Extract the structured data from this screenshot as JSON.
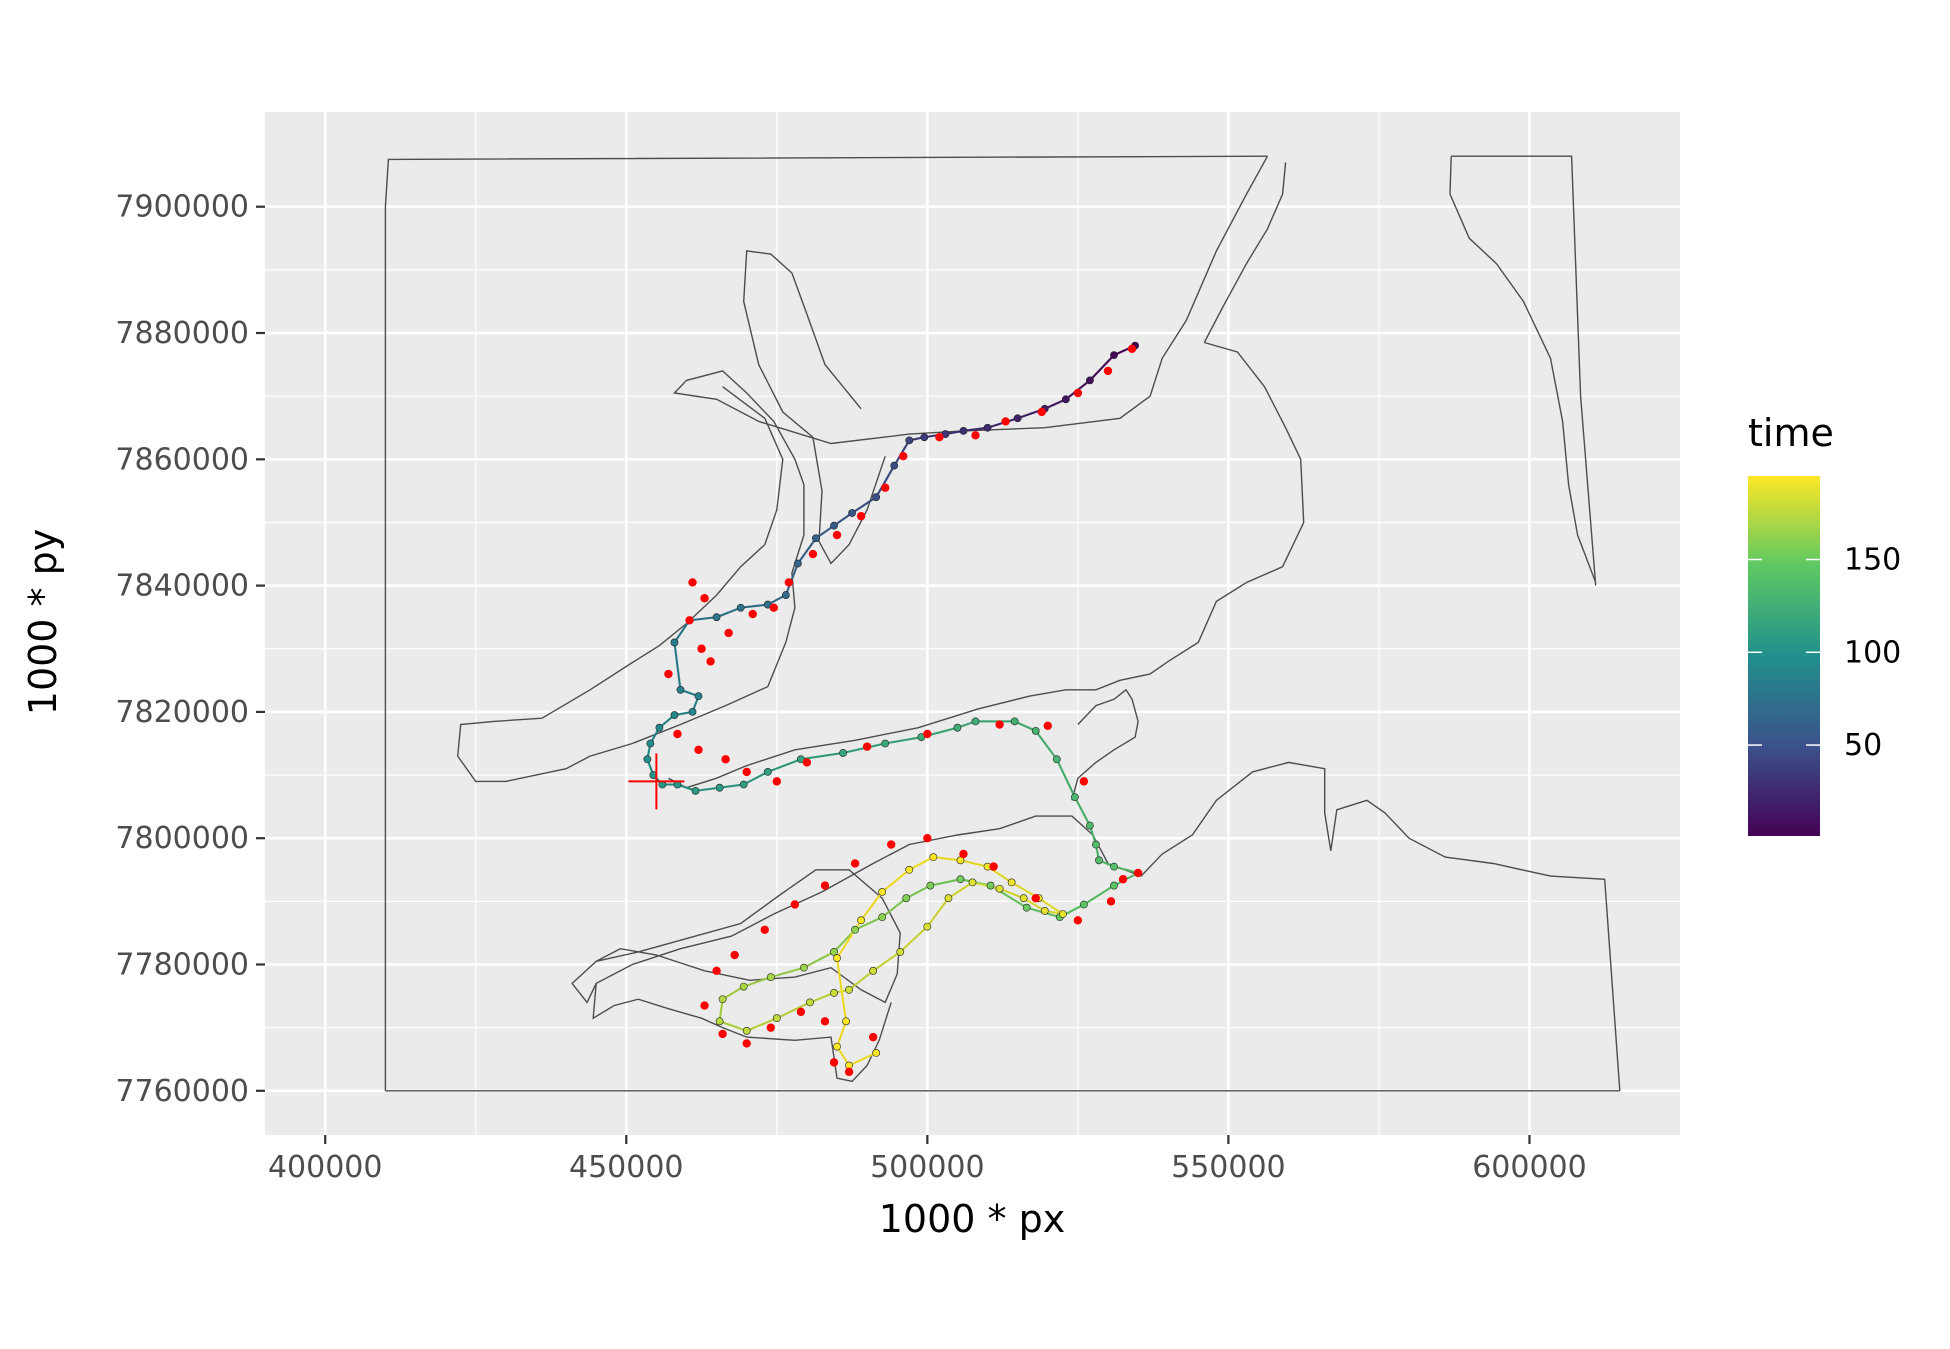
{
  "chart_data": {
    "type": "scatter",
    "title": "",
    "xlabel": "1000 * px",
    "ylabel": "1000 * py",
    "xlim": [
      390000,
      625000
    ],
    "ylim": [
      7753000,
      7915000
    ],
    "x_ticks": [
      400000,
      450000,
      500000,
      550000,
      600000
    ],
    "y_ticks": [
      7760000,
      7780000,
      7800000,
      7820000,
      7840000,
      7860000,
      7880000,
      7900000
    ],
    "x_tick_labels": [
      "400000",
      "450000",
      "500000",
      "550000",
      "600000"
    ],
    "y_tick_labels": [
      "7760000",
      "7780000",
      "7800000",
      "7820000",
      "7840000",
      "7860000",
      "7880000",
      "7900000"
    ],
    "grid": true,
    "panel_background": "#ebebeb",
    "coastline_color": "#4d4d4d",
    "outlier_color": "#ff0000",
    "start_marker": {
      "x": 455000,
      "y": 7809000,
      "color": "#ff0000"
    },
    "legend": {
      "title": "time",
      "placement": "right",
      "min": 1,
      "max": 195,
      "ticks": [
        50,
        100,
        150
      ],
      "tick_labels": [
        "50",
        "100",
        "150"
      ],
      "colormap": [
        "#440154",
        "#3b528b",
        "#21908c",
        "#5dc863",
        "#fde725"
      ]
    },
    "coastline": [
      [
        [
          410000,
          7760000
        ],
        [
          410000,
          7900000
        ],
        [
          410500,
          7907500
        ],
        [
          556500,
          7908000
        ]
      ],
      [
        [
          587000,
          7908000
        ],
        [
          607000,
          7908000
        ],
        [
          608500,
          7870000
        ],
        [
          611000,
          7840000
        ]
      ],
      [
        [
          587000,
          7908000
        ],
        [
          586800,
          7902000
        ],
        [
          590000,
          7895000
        ],
        [
          594500,
          7891000
        ],
        [
          599000,
          7885000
        ],
        [
          603500,
          7876000
        ],
        [
          605500,
          7866000
        ],
        [
          606500,
          7856000
        ],
        [
          608000,
          7848000
        ],
        [
          611000,
          7840500
        ]
      ],
      [
        [
          615000,
          7760000
        ],
        [
          612500,
          7793500
        ],
        [
          603500,
          7794000
        ],
        [
          594000,
          7796000
        ],
        [
          586000,
          7797000
        ],
        [
          580000,
          7800000
        ],
        [
          576000,
          7804000
        ],
        [
          573000,
          7806000
        ],
        [
          568000,
          7804500
        ],
        [
          567000,
          7798000
        ],
        [
          566000,
          7804000
        ],
        [
          566000,
          7811000
        ],
        [
          560000,
          7812000
        ],
        [
          554000,
          7810500
        ],
        [
          548000,
          7806000
        ],
        [
          544000,
          7800500
        ],
        [
          539000,
          7797500
        ],
        [
          535500,
          7794000
        ]
      ],
      [
        [
          410000,
          7760000
        ],
        [
          615000,
          7760000
        ]
      ],
      [
        [
          556500,
          7908000
        ],
        [
          553000,
          7902000
        ],
        [
          548000,
          7893000
        ],
        [
          543000,
          7882000
        ],
        [
          539000,
          7876000
        ],
        [
          537000,
          7870000
        ],
        [
          532000,
          7866500
        ],
        [
          519500,
          7865000
        ],
        [
          506000,
          7864500
        ],
        [
          497000,
          7864000
        ],
        [
          484000,
          7862500
        ],
        [
          472000,
          7866000
        ],
        [
          465000,
          7869500
        ],
        [
          458000,
          7870500
        ],
        [
          460000,
          7872500
        ],
        [
          466000,
          7874000
        ],
        [
          470000,
          7870500
        ],
        [
          474500,
          7866000
        ],
        [
          478000,
          7860000
        ],
        [
          479500,
          7856000
        ],
        [
          479500,
          7848000
        ],
        [
          477500,
          7842000
        ],
        [
          478000,
          7836500
        ],
        [
          476500,
          7831000
        ],
        [
          473500,
          7824000
        ],
        [
          466500,
          7821000
        ],
        [
          459000,
          7818000
        ],
        [
          451000,
          7815000
        ],
        [
          444000,
          7813000
        ],
        [
          440000,
          7811000
        ],
        [
          430000,
          7809000
        ],
        [
          425000,
          7809000
        ],
        [
          422000,
          7813000
        ],
        [
          422500,
          7818000
        ],
        [
          428000,
          7818500
        ],
        [
          436000,
          7819000
        ],
        [
          444000,
          7823500
        ],
        [
          450500,
          7827500
        ],
        [
          455500,
          7830500
        ],
        [
          460000,
          7834000
        ],
        [
          465000,
          7838500
        ],
        [
          469000,
          7843000
        ],
        [
          473000,
          7846500
        ],
        [
          475000,
          7852000
        ],
        [
          476000,
          7860000
        ],
        [
          473000,
          7866500
        ],
        [
          466000,
          7871500
        ]
      ],
      [
        [
          489000,
          7868000
        ],
        [
          483000,
          7875000
        ],
        [
          480000,
          7883000
        ],
        [
          477500,
          7889500
        ],
        [
          474000,
          7892500
        ],
        [
          470000,
          7893000
        ],
        [
          469500,
          7885000
        ],
        [
          472000,
          7875000
        ],
        [
          476000,
          7867500
        ],
        [
          481000,
          7863500
        ],
        [
          482500,
          7855000
        ],
        [
          482000,
          7847000
        ],
        [
          484000,
          7843500
        ],
        [
          487000,
          7846500
        ],
        [
          490000,
          7852000
        ],
        [
          493000,
          7860500
        ]
      ],
      [
        [
          546000,
          7878500
        ],
        [
          549000,
          7884000
        ],
        [
          553000,
          7891000
        ],
        [
          556500,
          7896500
        ],
        [
          559000,
          7902000
        ],
        [
          559500,
          7907000
        ]
      ],
      [
        [
          546000,
          7878500
        ],
        [
          551500,
          7877000
        ],
        [
          556000,
          7871500
        ],
        [
          559500,
          7865000
        ],
        [
          562000,
          7860000
        ],
        [
          562500,
          7850000
        ],
        [
          559000,
          7843000
        ],
        [
          553000,
          7840500
        ],
        [
          548000,
          7837500
        ],
        [
          545000,
          7831000
        ],
        [
          540000,
          7828000
        ],
        [
          537000,
          7826000
        ],
        [
          532000,
          7825000
        ],
        [
          528000,
          7823500
        ],
        [
          526000,
          7823500
        ],
        [
          523000,
          7823500
        ],
        [
          517000,
          7822500
        ],
        [
          508500,
          7820500
        ],
        [
          498500,
          7817500
        ],
        [
          488000,
          7815500
        ],
        [
          478000,
          7814000
        ],
        [
          470000,
          7811500
        ],
        [
          465000,
          7809500
        ],
        [
          460000,
          7808000
        ],
        [
          457000,
          7809500
        ]
      ],
      [
        [
          525000,
          7818000
        ],
        [
          528000,
          7821000
        ],
        [
          531000,
          7822000
        ],
        [
          533000,
          7823500
        ],
        [
          534000,
          7822000
        ],
        [
          535000,
          7818500
        ],
        [
          534500,
          7816000
        ],
        [
          531000,
          7814000
        ],
        [
          528000,
          7812000
        ],
        [
          525000,
          7809500
        ],
        [
          524000,
          7806000
        ]
      ],
      [
        [
          535500,
          7794000
        ],
        [
          530000,
          7796000
        ],
        [
          527500,
          7800500
        ],
        [
          524000,
          7803500
        ],
        [
          518000,
          7803500
        ],
        [
          512000,
          7801500
        ],
        [
          505000,
          7800500
        ],
        [
          497000,
          7799000
        ],
        [
          491000,
          7796000
        ],
        [
          482500,
          7791500
        ],
        [
          474500,
          7788000
        ],
        [
          467500,
          7784500
        ],
        [
          459000,
          7782500
        ],
        [
          451000,
          7780000
        ],
        [
          445000,
          7777000
        ],
        [
          443500,
          7774000
        ],
        [
          441000,
          7777000
        ],
        [
          445000,
          7780500
        ],
        [
          449000,
          7782500
        ],
        [
          455000,
          7781500
        ],
        [
          463000,
          7779000
        ],
        [
          470500,
          7777500
        ],
        [
          478000,
          7778000
        ],
        [
          484000,
          7779500
        ],
        [
          489000,
          7776000
        ],
        [
          493000,
          7774000
        ],
        [
          495000,
          7778500
        ],
        [
          495500,
          7785000
        ],
        [
          492500,
          7790500
        ],
        [
          487000,
          7795000
        ],
        [
          481500,
          7795000
        ],
        [
          475500,
          7791000
        ],
        [
          469000,
          7786500
        ],
        [
          461500,
          7784500
        ],
        [
          452000,
          7782000
        ],
        [
          445000,
          7780500
        ]
      ],
      [
        [
          445000,
          7777000
        ],
        [
          444500,
          7771500
        ],
        [
          448000,
          7773500
        ],
        [
          452000,
          7774500
        ],
        [
          457000,
          7773000
        ],
        [
          462500,
          7771500
        ],
        [
          466000,
          7770000
        ],
        [
          470000,
          7768500
        ],
        [
          478000,
          7768000
        ],
        [
          484000,
          7768500
        ],
        [
          485000,
          7762000
        ],
        [
          487500,
          7761500
        ],
        [
          490000,
          7764000
        ],
        [
          492000,
          7768000
        ],
        [
          494000,
          7774000
        ]
      ]
    ],
    "series": [
      {
        "name": "track",
        "x": [
          534500,
          531000,
          527000,
          523000,
          519500,
          515000,
          510000,
          506000,
          503000,
          499500,
          497000,
          494500,
          491500,
          487500,
          484500,
          481500,
          478500,
          476500,
          473500,
          469000,
          465000,
          460500,
          458000,
          459000,
          462000,
          461000,
          458000,
          455500,
          454000,
          453500,
          454500,
          456000,
          458500,
          461500,
          465500,
          469500,
          473500,
          479000,
          486000,
          493000,
          499000,
          505000,
          508000,
          514500,
          518000,
          521500,
          524500,
          527000,
          528000,
          528500,
          531000,
          535000,
          531000,
          526000,
          522000,
          516500,
          510500,
          505500,
          500500,
          496500,
          492500,
          488000,
          484500,
          479500,
          474000,
          469500,
          466000,
          465500,
          470000,
          475000,
          480500,
          484500,
          487000,
          491000,
          495500,
          500000,
          503500,
          507500,
          512000,
          516000,
          519500,
          522500,
          518500,
          514000,
          510000,
          505500,
          501000,
          497000,
          492500,
          489000,
          485000,
          486500,
          485000,
          487000,
          491500
        ],
        "y": [
          7878000,
          7876500,
          7872500,
          7869500,
          7868000,
          7866500,
          7865000,
          7864500,
          7864000,
          7863500,
          7863000,
          7859000,
          7854000,
          7851500,
          7849500,
          7847500,
          7843500,
          7838500,
          7837000,
          7836500,
          7835000,
          7834500,
          7831000,
          7823500,
          7822500,
          7820000,
          7819500,
          7817500,
          7815000,
          7812500,
          7810000,
          7808500,
          7808500,
          7807500,
          7808000,
          7808500,
          7810500,
          7812500,
          7813500,
          7815000,
          7816000,
          7817500,
          7818500,
          7818500,
          7817000,
          7812500,
          7806500,
          7802000,
          7799000,
          7796500,
          7795500,
          7794500,
          7792500,
          7789500,
          7787500,
          7789000,
          7792500,
          7793500,
          7792500,
          7790500,
          7787500,
          7785500,
          7782000,
          7779500,
          7778000,
          7776500,
          7774500,
          7771000,
          7769500,
          7771500,
          7774000,
          7775500,
          7776000,
          7779000,
          7782000,
          7786000,
          7790500,
          7793000,
          7792000,
          7790500,
          7788500,
          7788000,
          7790500,
          7793000,
          7795500,
          7796500,
          7797000,
          7795000,
          7791500,
          7787000,
          7781000,
          7771000,
          7767000,
          7764000,
          7766000
        ],
        "time": [
          1,
          5,
          9,
          13,
          17,
          21,
          25,
          29,
          33,
          37,
          41,
          45,
          49,
          53,
          57,
          61,
          65,
          69,
          72,
          75,
          78,
          81,
          84,
          86,
          88,
          90,
          92,
          94,
          96,
          98,
          100,
          102,
          104,
          106,
          108,
          110,
          112,
          114,
          116,
          118,
          120,
          122,
          124,
          126,
          128,
          130,
          132,
          134,
          136,
          138,
          140,
          142,
          144,
          146,
          148,
          150,
          152,
          154,
          156,
          158,
          160,
          162,
          164,
          166,
          168,
          170,
          172,
          174,
          176,
          177,
          178,
          179,
          180,
          181,
          182,
          183,
          184,
          185,
          186,
          187,
          188,
          189,
          190,
          191,
          192,
          193,
          194,
          195,
          195,
          195,
          195,
          195,
          195,
          195,
          195
        ]
      },
      {
        "name": "outliers",
        "x": [
          534000,
          530000,
          525000,
          519000,
          513000,
          508000,
          502000,
          496000,
          493000,
          489000,
          485000,
          481000,
          477000,
          474500,
          471000,
          467000,
          464000,
          463000,
          461000,
          460500,
          462500,
          457000,
          458500,
          462000,
          466500,
          470000,
          475000,
          480000,
          490000,
          500000,
          512000,
          520000,
          526000,
          532500,
          535000,
          530500,
          525000,
          518000,
          511000,
          506000,
          500000,
          494000,
          488000,
          483000,
          478000,
          473000,
          468000,
          465000,
          463000,
          466000,
          470000,
          474000,
          479000,
          483000,
          484500,
          487000,
          491000
        ],
        "y": [
          7877500,
          7874000,
          7870500,
          7867500,
          7866000,
          7863800,
          7863500,
          7860500,
          7855500,
          7851000,
          7848000,
          7845000,
          7840500,
          7836500,
          7835500,
          7832500,
          7828000,
          7838000,
          7840500,
          7834500,
          7830000,
          7826000,
          7816500,
          7814000,
          7812500,
          7810500,
          7809000,
          7812000,
          7814500,
          7816500,
          7818000,
          7817800,
          7809000,
          7793500,
          7794500,
          7790000,
          7787000,
          7790500,
          7795500,
          7797500,
          7800000,
          7799000,
          7796000,
          7792500,
          7789500,
          7785500,
          7781500,
          7779000,
          7773500,
          7769000,
          7767500,
          7770000,
          7772500,
          7771000,
          7764500,
          7763000,
          7768500
        ]
      }
    ]
  }
}
